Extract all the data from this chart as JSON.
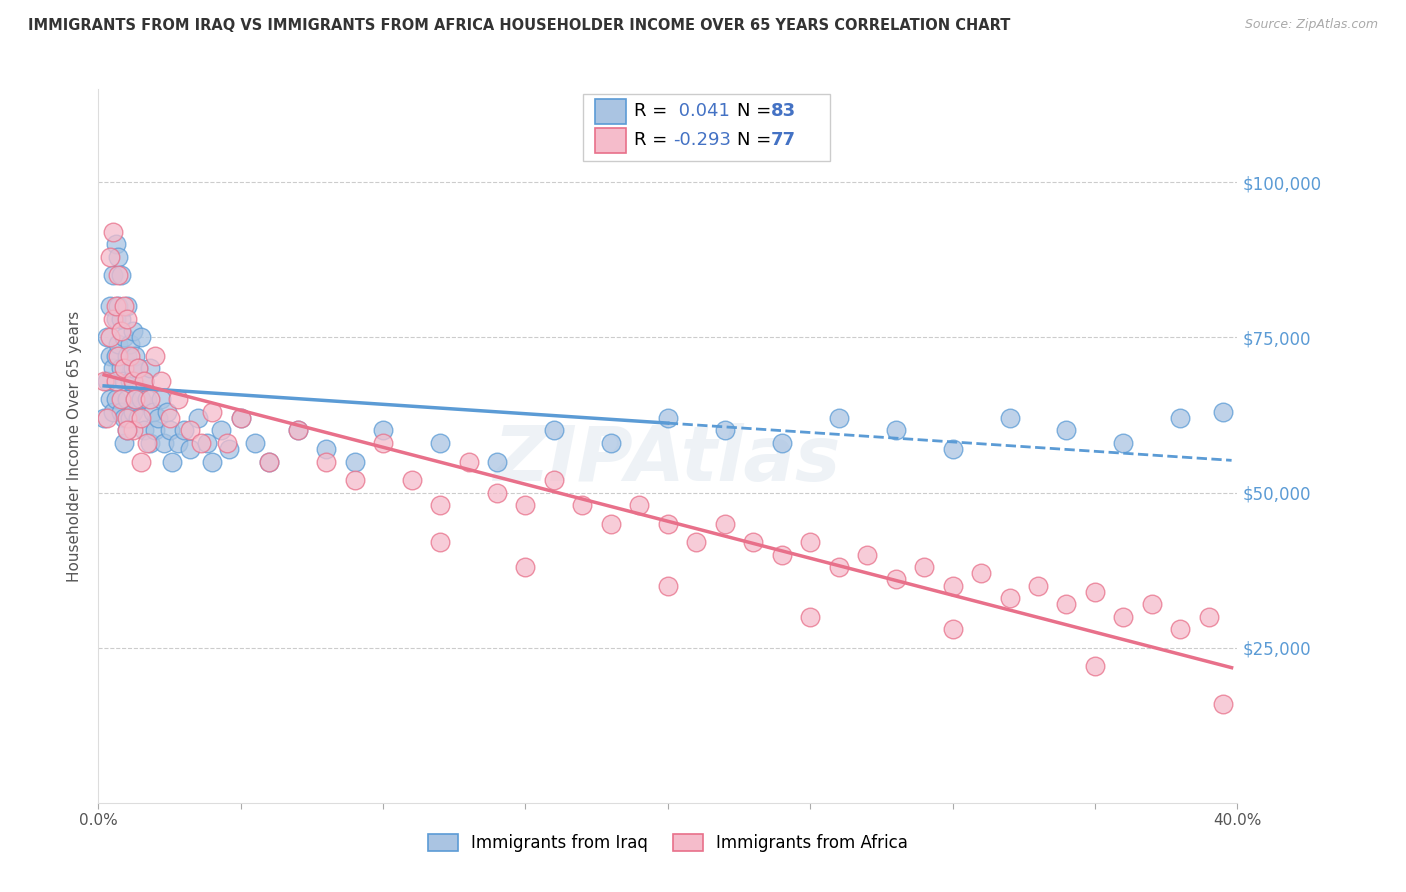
{
  "title": "IMMIGRANTS FROM IRAQ VS IMMIGRANTS FROM AFRICA HOUSEHOLDER INCOME OVER 65 YEARS CORRELATION CHART",
  "source": "Source: ZipAtlas.com",
  "ylabel": "Householder Income Over 65 years",
  "xlim": [
    0.0,
    0.4
  ],
  "ylim": [
    0,
    115000
  ],
  "ytick_values": [
    25000,
    50000,
    75000,
    100000
  ],
  "ytick_labels": [
    "$25,000",
    "$50,000",
    "$75,000",
    "$100,000"
  ],
  "iraq_color": "#aac4e2",
  "africa_color": "#f5bccb",
  "iraq_edge_color": "#5b9bd5",
  "africa_edge_color": "#e8708a",
  "trendline_iraq_solid_color": "#5b9bd5",
  "trendline_iraq_dash_color": "#5b9bd5",
  "trendline_africa_color": "#e8708a",
  "R_iraq": 0.041,
  "N_iraq": 83,
  "R_africa": -0.293,
  "N_africa": 77,
  "iraq_x": [
    0.002,
    0.003,
    0.003,
    0.004,
    0.004,
    0.004,
    0.005,
    0.005,
    0.005,
    0.006,
    0.006,
    0.006,
    0.006,
    0.007,
    0.007,
    0.007,
    0.008,
    0.008,
    0.008,
    0.008,
    0.009,
    0.009,
    0.009,
    0.009,
    0.01,
    0.01,
    0.01,
    0.01,
    0.011,
    0.011,
    0.011,
    0.012,
    0.012,
    0.012,
    0.013,
    0.013,
    0.014,
    0.014,
    0.015,
    0.015,
    0.016,
    0.016,
    0.017,
    0.018,
    0.018,
    0.019,
    0.02,
    0.021,
    0.022,
    0.023,
    0.024,
    0.025,
    0.026,
    0.028,
    0.03,
    0.032,
    0.035,
    0.038,
    0.04,
    0.043,
    0.046,
    0.05,
    0.055,
    0.06,
    0.07,
    0.08,
    0.09,
    0.1,
    0.12,
    0.14,
    0.16,
    0.18,
    0.2,
    0.22,
    0.24,
    0.26,
    0.28,
    0.3,
    0.32,
    0.34,
    0.36,
    0.38,
    0.395
  ],
  "iraq_y": [
    62000,
    75000,
    68000,
    80000,
    72000,
    65000,
    85000,
    70000,
    63000,
    90000,
    78000,
    72000,
    65000,
    88000,
    80000,
    74000,
    85000,
    78000,
    70000,
    63000,
    75000,
    68000,
    62000,
    58000,
    80000,
    72000,
    65000,
    60000,
    74000,
    68000,
    62000,
    76000,
    70000,
    63000,
    72000,
    65000,
    70000,
    62000,
    75000,
    65000,
    68000,
    60000,
    65000,
    70000,
    58000,
    63000,
    60000,
    62000,
    65000,
    58000,
    63000,
    60000,
    55000,
    58000,
    60000,
    57000,
    62000,
    58000,
    55000,
    60000,
    57000,
    62000,
    58000,
    55000,
    60000,
    57000,
    55000,
    60000,
    58000,
    55000,
    60000,
    58000,
    62000,
    60000,
    58000,
    62000,
    60000,
    57000,
    62000,
    60000,
    58000,
    62000,
    63000
  ],
  "africa_x": [
    0.002,
    0.003,
    0.004,
    0.004,
    0.005,
    0.005,
    0.006,
    0.006,
    0.007,
    0.007,
    0.008,
    0.008,
    0.009,
    0.009,
    0.01,
    0.01,
    0.011,
    0.012,
    0.012,
    0.013,
    0.014,
    0.015,
    0.016,
    0.017,
    0.018,
    0.02,
    0.022,
    0.025,
    0.028,
    0.032,
    0.036,
    0.04,
    0.045,
    0.05,
    0.06,
    0.07,
    0.08,
    0.09,
    0.1,
    0.11,
    0.12,
    0.13,
    0.14,
    0.15,
    0.16,
    0.17,
    0.18,
    0.19,
    0.2,
    0.21,
    0.22,
    0.23,
    0.24,
    0.25,
    0.26,
    0.27,
    0.28,
    0.29,
    0.3,
    0.31,
    0.32,
    0.33,
    0.34,
    0.35,
    0.36,
    0.37,
    0.38,
    0.39,
    0.12,
    0.15,
    0.2,
    0.25,
    0.3,
    0.35,
    0.395,
    0.01,
    0.015
  ],
  "africa_y": [
    68000,
    62000,
    88000,
    75000,
    92000,
    78000,
    80000,
    68000,
    85000,
    72000,
    76000,
    65000,
    80000,
    70000,
    78000,
    62000,
    72000,
    68000,
    60000,
    65000,
    70000,
    62000,
    68000,
    58000,
    65000,
    72000,
    68000,
    62000,
    65000,
    60000,
    58000,
    63000,
    58000,
    62000,
    55000,
    60000,
    55000,
    52000,
    58000,
    52000,
    48000,
    55000,
    50000,
    48000,
    52000,
    48000,
    45000,
    48000,
    45000,
    42000,
    45000,
    42000,
    40000,
    42000,
    38000,
    40000,
    36000,
    38000,
    35000,
    37000,
    33000,
    35000,
    32000,
    34000,
    30000,
    32000,
    28000,
    30000,
    42000,
    38000,
    35000,
    30000,
    28000,
    22000,
    16000,
    60000,
    55000
  ]
}
